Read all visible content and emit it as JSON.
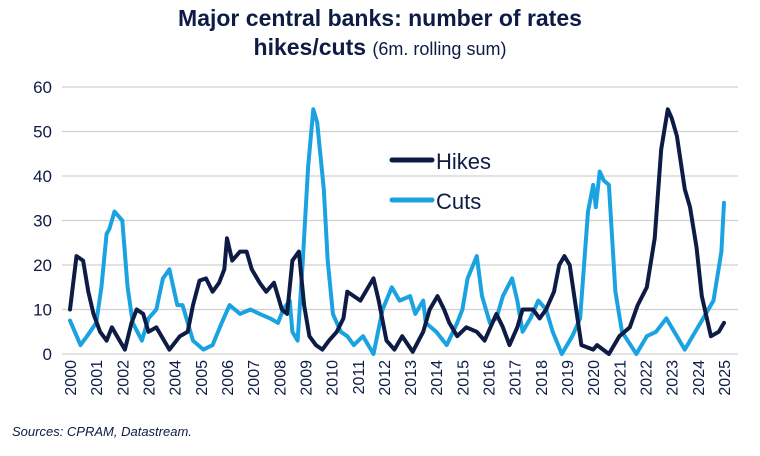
{
  "chart_data": {
    "type": "line",
    "title_line1": "Major central banks: number of rates",
    "title_line2_bold": "hikes/cuts",
    "title_line2_regular": "(6m. rolling sum)",
    "xlabel": "",
    "ylabel": "",
    "xlim": [
      2000,
      2025
    ],
    "ylim": [
      0,
      60
    ],
    "y_ticks": [
      "0",
      "10",
      "20",
      "30",
      "40",
      "50",
      "60"
    ],
    "x_ticks": [
      "2000",
      "2001",
      "2002",
      "2003",
      "2004",
      "2005",
      "2006",
      "2007",
      "2008",
      "2009",
      "2010",
      "2011",
      "2012",
      "2013",
      "2014",
      "2015",
      "2016",
      "2017",
      "2018",
      "2019",
      "2020",
      "2021",
      "2022",
      "2023",
      "2024",
      "2025"
    ],
    "grid": "horizontal",
    "legend_position": "center-top",
    "series": [
      {
        "name": "Hikes",
        "color": "#0d1b45",
        "points": [
          [
            2000.0,
            10
          ],
          [
            2000.25,
            22
          ],
          [
            2000.5,
            21
          ],
          [
            2000.7,
            14
          ],
          [
            2000.9,
            9
          ],
          [
            2001.15,
            5
          ],
          [
            2001.4,
            3
          ],
          [
            2001.6,
            6
          ],
          [
            2001.8,
            4
          ],
          [
            2002.1,
            1
          ],
          [
            2002.35,
            7
          ],
          [
            2002.55,
            10
          ],
          [
            2002.8,
            9
          ],
          [
            2003.0,
            5
          ],
          [
            2003.3,
            6
          ],
          [
            2003.8,
            1
          ],
          [
            2004.2,
            4
          ],
          [
            2004.5,
            5
          ],
          [
            2004.7,
            11
          ],
          [
            2004.95,
            16.5
          ],
          [
            2005.2,
            17
          ],
          [
            2005.45,
            14
          ],
          [
            2005.7,
            16
          ],
          [
            2005.9,
            19
          ],
          [
            2006.0,
            26
          ],
          [
            2006.2,
            21
          ],
          [
            2006.5,
            23
          ],
          [
            2006.75,
            23
          ],
          [
            2006.95,
            19
          ],
          [
            2007.25,
            16
          ],
          [
            2007.5,
            14
          ],
          [
            2007.8,
            16
          ],
          [
            2008.1,
            10
          ],
          [
            2008.3,
            9
          ],
          [
            2008.5,
            21
          ],
          [
            2008.75,
            23
          ],
          [
            2008.95,
            11
          ],
          [
            2009.15,
            4
          ],
          [
            2009.4,
            2
          ],
          [
            2009.65,
            1
          ],
          [
            2009.9,
            3
          ],
          [
            2010.2,
            5
          ],
          [
            2010.45,
            8
          ],
          [
            2010.6,
            14
          ],
          [
            2010.85,
            13
          ],
          [
            2011.1,
            12
          ],
          [
            2011.4,
            15
          ],
          [
            2011.6,
            17
          ],
          [
            2011.8,
            12
          ],
          [
            2012.1,
            3
          ],
          [
            2012.4,
            1
          ],
          [
            2012.7,
            4
          ],
          [
            2013.1,
            0.5
          ],
          [
            2013.5,
            5
          ],
          [
            2013.75,
            10
          ],
          [
            2014.05,
            13
          ],
          [
            2014.3,
            10
          ],
          [
            2014.5,
            7
          ],
          [
            2014.8,
            4
          ],
          [
            2015.15,
            6
          ],
          [
            2015.55,
            5
          ],
          [
            2015.85,
            3
          ],
          [
            2016.3,
            9
          ],
          [
            2016.55,
            6
          ],
          [
            2016.8,
            2
          ],
          [
            2017.1,
            6
          ],
          [
            2017.3,
            10
          ],
          [
            2017.7,
            10
          ],
          [
            2017.95,
            8
          ],
          [
            2018.2,
            10
          ],
          [
            2018.5,
            14
          ],
          [
            2018.7,
            20
          ],
          [
            2018.9,
            22
          ],
          [
            2019.1,
            20
          ],
          [
            2019.35,
            10
          ],
          [
            2019.55,
            2
          ],
          [
            2020.0,
            1
          ],
          [
            2020.15,
            2
          ],
          [
            2020.6,
            0
          ],
          [
            2021.0,
            4
          ],
          [
            2021.4,
            6
          ],
          [
            2021.7,
            11
          ],
          [
            2022.05,
            15
          ],
          [
            2022.35,
            26
          ],
          [
            2022.6,
            46
          ],
          [
            2022.85,
            55
          ],
          [
            2023.0,
            53
          ],
          [
            2023.2,
            49
          ],
          [
            2023.5,
            37
          ],
          [
            2023.7,
            33
          ],
          [
            2023.95,
            24
          ],
          [
            2024.15,
            13
          ],
          [
            2024.5,
            4
          ],
          [
            2024.8,
            5
          ],
          [
            2025.0,
            7
          ]
        ]
      },
      {
        "name": "Cuts",
        "color": "#1aa3e0",
        "points": [
          [
            2000.0,
            7.5
          ],
          [
            2000.4,
            2
          ],
          [
            2000.65,
            4
          ],
          [
            2001.0,
            7
          ],
          [
            2001.2,
            15
          ],
          [
            2001.4,
            27
          ],
          [
            2001.5,
            28
          ],
          [
            2001.7,
            32
          ],
          [
            2002.0,
            30
          ],
          [
            2002.2,
            15
          ],
          [
            2002.4,
            7
          ],
          [
            2002.75,
            3
          ],
          [
            2003.0,
            8
          ],
          [
            2003.3,
            10
          ],
          [
            2003.55,
            17
          ],
          [
            2003.8,
            19
          ],
          [
            2004.1,
            11
          ],
          [
            2004.3,
            11
          ],
          [
            2004.7,
            3
          ],
          [
            2005.1,
            1
          ],
          [
            2005.45,
            2
          ],
          [
            2005.8,
            7
          ],
          [
            2006.1,
            11
          ],
          [
            2006.5,
            9
          ],
          [
            2006.9,
            10
          ],
          [
            2007.25,
            9
          ],
          [
            2007.65,
            8
          ],
          [
            2007.95,
            7
          ],
          [
            2008.15,
            10
          ],
          [
            2008.4,
            12
          ],
          [
            2008.5,
            5
          ],
          [
            2008.7,
            3
          ],
          [
            2008.9,
            21
          ],
          [
            2009.1,
            42
          ],
          [
            2009.3,
            55
          ],
          [
            2009.45,
            52
          ],
          [
            2009.7,
            37
          ],
          [
            2009.85,
            21
          ],
          [
            2010.05,
            9
          ],
          [
            2010.35,
            5
          ],
          [
            2010.6,
            4
          ],
          [
            2010.85,
            2
          ],
          [
            2011.2,
            4
          ],
          [
            2011.6,
            0
          ],
          [
            2011.95,
            10
          ],
          [
            2012.3,
            15
          ],
          [
            2012.6,
            12
          ],
          [
            2013.0,
            13
          ],
          [
            2013.2,
            9
          ],
          [
            2013.5,
            12
          ],
          [
            2013.6,
            7
          ],
          [
            2014.0,
            5
          ],
          [
            2014.4,
            2
          ],
          [
            2014.8,
            7
          ],
          [
            2015.0,
            10
          ],
          [
            2015.2,
            17
          ],
          [
            2015.55,
            22
          ],
          [
            2015.75,
            13
          ],
          [
            2016.05,
            7
          ],
          [
            2016.3,
            8
          ],
          [
            2016.55,
            13
          ],
          [
            2016.9,
            17
          ],
          [
            2017.1,
            12
          ],
          [
            2017.3,
            5
          ],
          [
            2017.6,
            8
          ],
          [
            2017.9,
            12
          ],
          [
            2018.2,
            10
          ],
          [
            2018.45,
            5
          ],
          [
            2018.8,
            0
          ],
          [
            2019.2,
            4
          ],
          [
            2019.5,
            8
          ],
          [
            2019.8,
            32
          ],
          [
            2020.0,
            38
          ],
          [
            2020.1,
            33
          ],
          [
            2020.25,
            41
          ],
          [
            2020.4,
            39
          ],
          [
            2020.6,
            38
          ],
          [
            2020.85,
            14
          ],
          [
            2021.1,
            5
          ],
          [
            2021.65,
            0
          ],
          [
            2022.05,
            4
          ],
          [
            2022.4,
            5
          ],
          [
            2022.8,
            8
          ],
          [
            2023.1,
            5
          ],
          [
            2023.5,
            1
          ],
          [
            2023.8,
            4
          ],
          [
            2024.1,
            7
          ],
          [
            2024.4,
            10
          ],
          [
            2024.6,
            12
          ],
          [
            2024.9,
            23
          ],
          [
            2025.0,
            34
          ]
        ]
      }
    ]
  },
  "source": "Sources: CPRAM, Datastream."
}
